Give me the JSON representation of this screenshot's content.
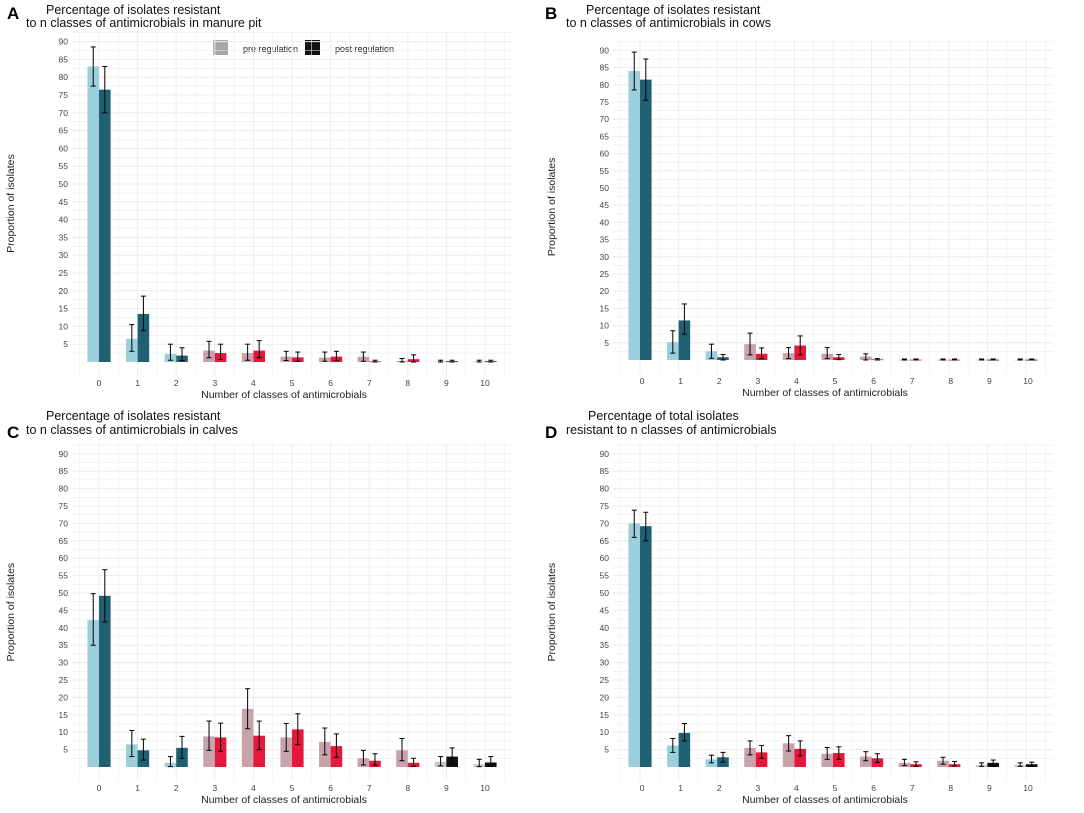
{
  "legend": {
    "pre_label": "pre  regulation",
    "post_label": "post  regulation",
    "pre_swatch_color": "#a6a6a6",
    "post_swatch_color": "#111111"
  },
  "colors": {
    "pre_cyan": "#9ccfdc",
    "post_cyan": "#1f6173",
    "pre_pink": "#c9a3ab",
    "post_red": "#e5173b",
    "pre_grey": "#c8c8c8",
    "post_black": "#111111",
    "grid": "#ececec",
    "error_bar": "#000000"
  },
  "chart_data": [
    {
      "panel_letter": "A",
      "type": "bar",
      "title_line1": "Percentage of isolates resistant",
      "title_line2": "to n classes of antimicrobials in manure pit",
      "xlabel": "Number of classes of antimicrobials",
      "ylabel": "Proportion of isolates",
      "categories": [
        "0",
        "1",
        "2",
        "3",
        "4",
        "5",
        "6",
        "7",
        "8",
        "9",
        "10"
      ],
      "yticks": [
        "5",
        "10",
        "15",
        "20",
        "25",
        "30",
        "35",
        "40",
        "45",
        "50",
        "55",
        "60",
        "65",
        "70",
        "75",
        "80",
        "85",
        "90"
      ],
      "ylim": [
        -4,
        93
      ],
      "series": [
        {
          "name": "pre regulation",
          "values": [
            83,
            6.5,
            2.3,
            3.2,
            2.5,
            1.5,
            1.2,
            1.5,
            0.3,
            0.2,
            0.2
          ],
          "err_low": [
            77.5,
            3,
            0.5,
            1.2,
            0.5,
            0.4,
            0.2,
            0.2,
            0,
            0,
            0
          ],
          "err_high": [
            88.5,
            10.5,
            5,
            5.8,
            5,
            3,
            2.8,
            2.8,
            1,
            0.5,
            0.5
          ]
        },
        {
          "name": "post regulation",
          "values": [
            76.5,
            13.5,
            1.8,
            2.5,
            3.2,
            1.3,
            1.5,
            0.2,
            0.8,
            0.2,
            0.2
          ],
          "err_low": [
            70,
            8.8,
            0.4,
            0.7,
            1.2,
            0.2,
            0.4,
            0,
            0,
            0,
            0
          ],
          "err_high": [
            83,
            18.5,
            4,
            5,
            6,
            2.8,
            3,
            0.5,
            2,
            0.5,
            0.5
          ]
        }
      ]
    },
    {
      "panel_letter": "B",
      "type": "bar",
      "title_line1": "Percentage of isolates resistant",
      "title_line2": "to n classes of antimicrobials in cows",
      "xlabel": "Number of classes of antimicrobials",
      "ylabel": "Proportion of isolates",
      "categories": [
        "0",
        "1",
        "2",
        "3",
        "4",
        "5",
        "6",
        "7",
        "8",
        "9",
        "10"
      ],
      "yticks": [
        "5",
        "10",
        "15",
        "20",
        "25",
        "30",
        "35",
        "40",
        "45",
        "50",
        "55",
        "60",
        "65",
        "70",
        "75",
        "80",
        "85",
        "90"
      ],
      "ylim": [
        -4,
        93
      ],
      "series": [
        {
          "name": "pre regulation",
          "values": [
            84,
            5.2,
            2.5,
            4.6,
            2,
            1.8,
            1,
            0.1,
            0.1,
            0.1,
            0.1
          ],
          "err_low": [
            78.5,
            2,
            0.5,
            1.5,
            0.4,
            0.4,
            0,
            0,
            0,
            0,
            0
          ],
          "err_high": [
            89.5,
            8.5,
            4.6,
            7.8,
            3.6,
            3.6,
            1.8,
            0.3,
            0.3,
            0.3,
            0.3
          ]
        },
        {
          "name": "post regulation",
          "values": [
            81.5,
            11.5,
            0.8,
            1.8,
            4.2,
            0.8,
            0.2,
            0.1,
            0.1,
            0.1,
            0.1
          ],
          "err_low": [
            75.5,
            7.5,
            0,
            0.4,
            1.5,
            0.1,
            0,
            0,
            0,
            0,
            0
          ],
          "err_high": [
            87.5,
            16.3,
            1.6,
            3.5,
            7,
            1.6,
            0.4,
            0.3,
            0.3,
            0.3,
            0.3
          ]
        }
      ]
    },
    {
      "panel_letter": "C",
      "type": "bar",
      "title_line1": "Percentage of isolates resistant",
      "title_line2": "to n classes of antimicrobials in calves",
      "xlabel": "Number of classes of antimicrobials",
      "ylabel": "Proportion of isolates",
      "categories": [
        "0",
        "1",
        "2",
        "3",
        "4",
        "5",
        "6",
        "7",
        "8",
        "9",
        "10"
      ],
      "yticks": [
        "5",
        "10",
        "15",
        "20",
        "25",
        "30",
        "35",
        "40",
        "45",
        "50",
        "55",
        "60",
        "65",
        "70",
        "75",
        "80",
        "85",
        "90"
      ],
      "ylim": [
        -4,
        93
      ],
      "series": [
        {
          "name": "pre regulation",
          "values": [
            42.2,
            6.5,
            1.2,
            8.8,
            16.7,
            8.5,
            7.2,
            2.5,
            4.8,
            1.5,
            0.8
          ],
          "err_low": [
            35,
            3,
            0.1,
            4.8,
            11,
            4.5,
            3.5,
            0.6,
            1.8,
            0.3,
            0.1
          ],
          "err_high": [
            49.8,
            10.5,
            3,
            13.2,
            22.5,
            12.5,
            11.2,
            4.8,
            8.2,
            3,
            2.2
          ]
        },
        {
          "name": "post regulation",
          "values": [
            49.2,
            4.8,
            5.5,
            8.5,
            9,
            10.8,
            6,
            1.8,
            1.2,
            3,
            1.3
          ],
          "err_low": [
            41.7,
            2,
            2.5,
            4.5,
            5,
            6.4,
            2.8,
            0.5,
            0.2,
            1,
            0.4
          ],
          "err_high": [
            56.7,
            8,
            8.8,
            12.6,
            13.2,
            15.3,
            9.5,
            3.8,
            2.5,
            5.5,
            3
          ]
        }
      ]
    },
    {
      "panel_letter": "D",
      "type": "bar",
      "title_line1": "Percentage of total isolates",
      "title_line2": "resistant to n classes of antimicrobials",
      "xlabel": "Number of classes of antimicrobials",
      "ylabel": "Proportion of isolates",
      "categories": [
        "0",
        "1",
        "2",
        "3",
        "4",
        "5",
        "6",
        "7",
        "8",
        "9",
        "10"
      ],
      "yticks": [
        "5",
        "10",
        "15",
        "20",
        "25",
        "30",
        "35",
        "40",
        "45",
        "50",
        "55",
        "60",
        "65",
        "70",
        "75",
        "80",
        "85",
        "90"
      ],
      "ylim": [
        -4,
        93
      ],
      "series": [
        {
          "name": "pre regulation",
          "values": [
            70,
            6.2,
            2.2,
            5.5,
            6.8,
            3.8,
            3,
            1.2,
            1.8,
            0.6,
            0.6
          ],
          "err_low": [
            66,
            4.2,
            1.2,
            3.5,
            4.6,
            2.2,
            1.8,
            0.4,
            0.8,
            0.2,
            0.2
          ],
          "err_high": [
            73.8,
            8.2,
            3.4,
            7.5,
            9,
            5.6,
            4.4,
            2.2,
            2.8,
            1.2,
            1.2
          ]
        },
        {
          "name": "post regulation",
          "values": [
            69.2,
            9.8,
            2.8,
            4.2,
            5.2,
            4,
            2.5,
            0.8,
            0.8,
            1.2,
            0.8
          ],
          "err_low": [
            65,
            7.5,
            1.4,
            2.5,
            3.2,
            2.2,
            1.3,
            0.2,
            0.3,
            0.4,
            0.3
          ],
          "err_high": [
            73.2,
            12.5,
            4.2,
            6.2,
            7.5,
            5.8,
            3.8,
            1.5,
            1.6,
            2,
            1.4
          ]
        }
      ]
    }
  ]
}
